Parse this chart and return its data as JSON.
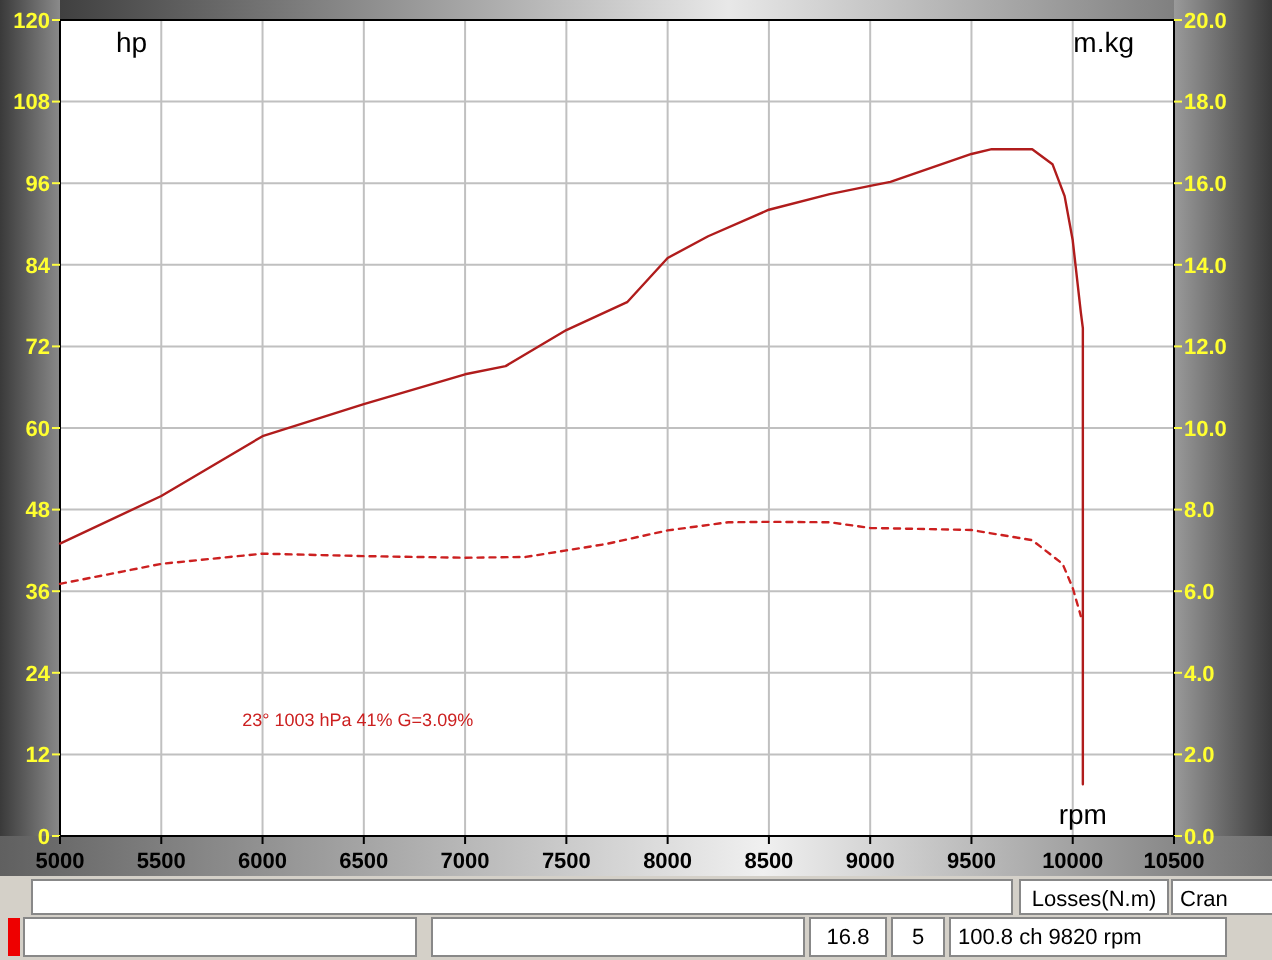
{
  "chart_data": {
    "type": "line",
    "ylabel": "hp",
    "y2label": "m.kg",
    "xlabel": "rpm",
    "xlim": [
      5000,
      10500
    ],
    "xticks": [
      5000,
      5500,
      6000,
      6500,
      7000,
      7500,
      8000,
      8500,
      9000,
      9500,
      10000,
      10500
    ],
    "ylim": [
      0,
      120
    ],
    "yticks": [
      0,
      12,
      24,
      36,
      48,
      60,
      72,
      84,
      96,
      108,
      120
    ],
    "y2lim": [
      0,
      20
    ],
    "y2ticks": [
      {
        "value": 0,
        "label": "0.0"
      },
      {
        "value": 2,
        "label": "2.0"
      },
      {
        "value": 4,
        "label": "4.0"
      },
      {
        "value": 6,
        "label": "6.0"
      },
      {
        "value": 8,
        "label": "8.0"
      },
      {
        "value": 10,
        "label": "10.0"
      },
      {
        "value": 12,
        "label": "12.0"
      },
      {
        "value": 14,
        "label": "14.0"
      },
      {
        "value": 16,
        "label": "16.0"
      },
      {
        "value": 18,
        "label": "18.0"
      },
      {
        "value": 20,
        "label": "20.0"
      }
    ],
    "grid": true,
    "series": [
      {
        "color": "#b01c1c",
        "line_style": "solid",
        "x": [
          5000,
          5500,
          6000,
          6500,
          7000,
          7200,
          7500,
          7800,
          8000,
          8200,
          8500,
          8800,
          9000,
          9100,
          9500,
          9600,
          9800,
          9900,
          9960,
          10000,
          10040,
          10050,
          10050
        ],
        "values": [
          43,
          50,
          58.8,
          63.5,
          67.9,
          69.1,
          74.4,
          78.5,
          85,
          88.2,
          92.1,
          94.4,
          95.6,
          96.2,
          100.3,
          101,
          101,
          98.8,
          94.1,
          87.6,
          77,
          74.7,
          7.6
        ]
      },
      {
        "color": "#cc2020",
        "line_style": "dashed",
        "axis": "y2",
        "x": [
          5000,
          5500,
          6000,
          6500,
          7000,
          7300,
          7500,
          7700,
          8000,
          8300,
          8500,
          8800,
          9000,
          9500,
          9800,
          9950,
          10000,
          10040
        ],
        "values": [
          6.18,
          6.67,
          6.92,
          6.86,
          6.82,
          6.84,
          7.0,
          7.16,
          7.49,
          7.69,
          7.7,
          7.69,
          7.55,
          7.5,
          7.25,
          6.67,
          6.08,
          5.39
        ]
      }
    ],
    "annotations": [
      "23°  1003 hPa  41%   G=3.09%",
      "Losses(N.m)",
      "Cran",
      "16.8",
      "5",
      "100.8 ch 9820 rpm"
    ]
  }
}
